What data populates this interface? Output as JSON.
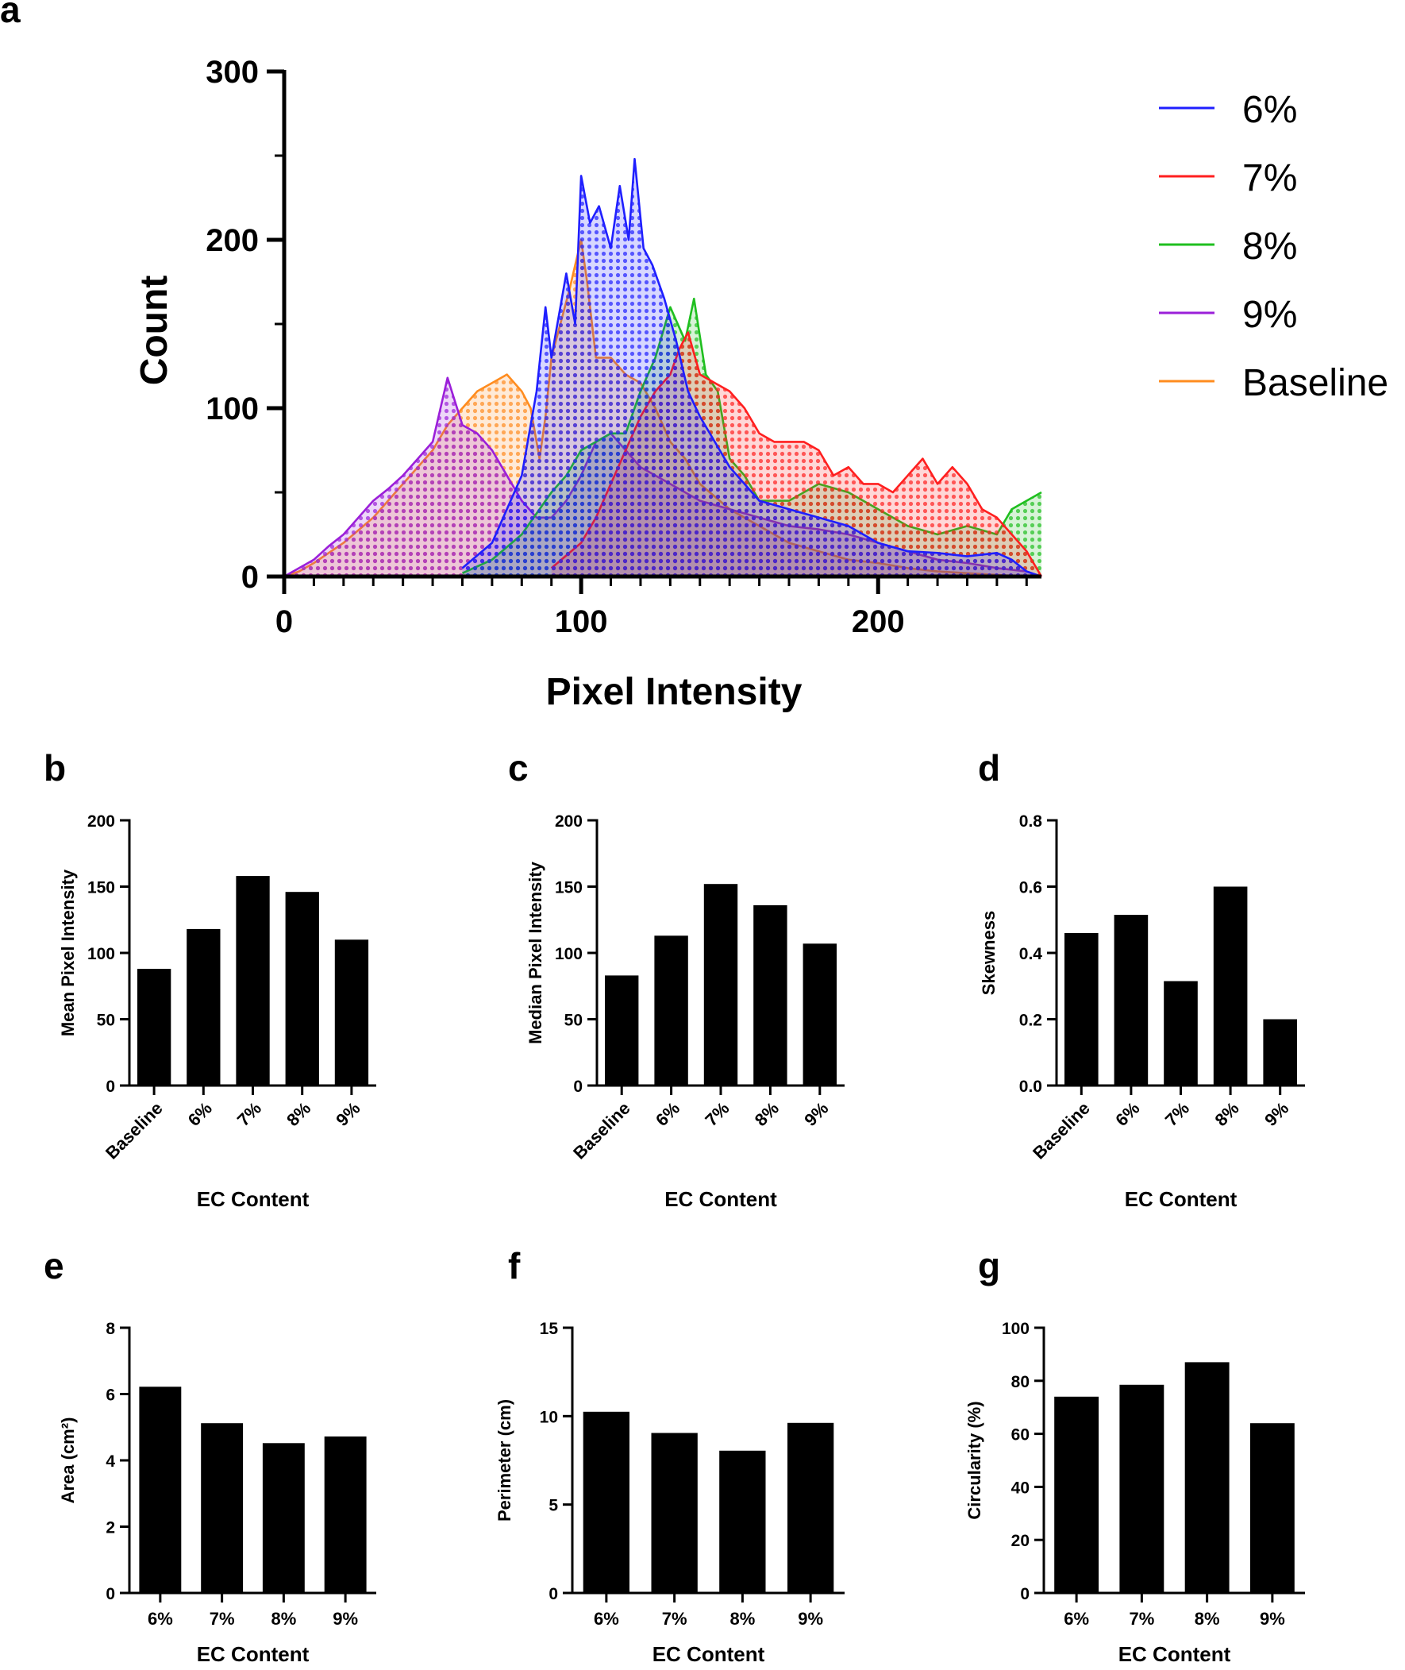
{
  "chart_data": [
    {
      "panel": "a",
      "type": "area",
      "xlabel": "Pixel Intensity",
      "ylabel": "Count",
      "xlim": [
        0,
        255
      ],
      "ylim": [
        0,
        300
      ],
      "xticks": [
        "0",
        "100",
        "200"
      ],
      "yticks": [
        "0",
        "100",
        "200",
        "300"
      ],
      "legend_position": "top-right",
      "series": [
        {
          "name": "6%",
          "color": "#1f1fff",
          "x": [
            60,
            70,
            80,
            85,
            88,
            90,
            95,
            98,
            100,
            103,
            106,
            110,
            113,
            116,
            118,
            121,
            124,
            128,
            132,
            136,
            140,
            145,
            150,
            155,
            160,
            170,
            180,
            190,
            200,
            210,
            220,
            230,
            240,
            245,
            250,
            255
          ],
          "values": [
            5,
            20,
            60,
            110,
            160,
            130,
            180,
            150,
            238,
            210,
            220,
            195,
            232,
            200,
            248,
            195,
            185,
            165,
            140,
            110,
            95,
            80,
            65,
            55,
            45,
            40,
            35,
            30,
            20,
            15,
            14,
            12,
            14,
            10,
            3,
            0
          ]
        },
        {
          "name": "7%",
          "color": "#ff1f1f",
          "x": [
            90,
            100,
            105,
            110,
            115,
            120,
            125,
            130,
            133,
            136,
            140,
            145,
            150,
            155,
            160,
            165,
            170,
            175,
            180,
            185,
            190,
            195,
            200,
            205,
            210,
            215,
            220,
            225,
            230,
            235,
            240,
            245,
            250,
            255
          ],
          "values": [
            5,
            20,
            35,
            55,
            75,
            95,
            110,
            120,
            135,
            145,
            120,
            115,
            110,
            100,
            85,
            80,
            80,
            80,
            75,
            60,
            65,
            55,
            55,
            50,
            60,
            70,
            55,
            65,
            55,
            40,
            35,
            25,
            15,
            0
          ]
        },
        {
          "name": "8%",
          "color": "#1fbf1f",
          "x": [
            60,
            70,
            80,
            90,
            95,
            100,
            105,
            110,
            115,
            120,
            125,
            130,
            135,
            138,
            142,
            146,
            150,
            155,
            160,
            170,
            180,
            190,
            200,
            210,
            220,
            230,
            240,
            245,
            250,
            255
          ],
          "values": [
            2,
            10,
            25,
            50,
            60,
            75,
            80,
            85,
            85,
            110,
            130,
            160,
            140,
            165,
            120,
            110,
            70,
            60,
            45,
            45,
            55,
            50,
            40,
            30,
            25,
            30,
            25,
            40,
            45,
            50
          ]
        },
        {
          "name": "9%",
          "color": "#9b1fd9",
          "x": [
            0,
            5,
            10,
            15,
            20,
            25,
            30,
            35,
            40,
            45,
            50,
            55,
            60,
            65,
            70,
            75,
            80,
            85,
            90,
            95,
            100,
            105,
            110,
            115,
            120,
            130,
            140,
            150,
            160,
            170,
            180,
            190,
            200,
            210,
            220,
            230,
            240,
            250,
            255
          ],
          "values": [
            0,
            5,
            10,
            18,
            25,
            35,
            45,
            52,
            60,
            70,
            80,
            118,
            90,
            85,
            75,
            60,
            45,
            35,
            35,
            45,
            60,
            80,
            85,
            75,
            65,
            55,
            45,
            40,
            35,
            30,
            28,
            25,
            20,
            15,
            10,
            8,
            5,
            3,
            0
          ]
        },
        {
          "name": "Baseline",
          "color": "#ff8c1f",
          "x": [
            0,
            5,
            10,
            20,
            30,
            40,
            50,
            55,
            60,
            65,
            70,
            75,
            80,
            83,
            86,
            88,
            90,
            93,
            96,
            98,
            100,
            102,
            105,
            110,
            115,
            120,
            125,
            130,
            135,
            140,
            150,
            160,
            170,
            180,
            190,
            200,
            210,
            220,
            230,
            240,
            250,
            255
          ],
          "values": [
            0,
            3,
            8,
            20,
            35,
            55,
            75,
            90,
            100,
            110,
            115,
            120,
            110,
            100,
            70,
            95,
            130,
            150,
            170,
            185,
            200,
            175,
            130,
            130,
            120,
            115,
            100,
            80,
            70,
            55,
            40,
            30,
            20,
            15,
            10,
            8,
            5,
            3,
            2,
            1,
            0,
            0
          ]
        }
      ]
    },
    {
      "panel": "b",
      "type": "bar",
      "categories": [
        "Baseline",
        "6%",
        "7%",
        "8%",
        "9%"
      ],
      "values": [
        88,
        118,
        158,
        146,
        110
      ],
      "xlabel": "EC Content",
      "ylabel": "Mean Pixel Intensity",
      "ylim": [
        0,
        200
      ],
      "yticks": [
        "0",
        "50",
        "100",
        "150",
        "200"
      ]
    },
    {
      "panel": "c",
      "type": "bar",
      "categories": [
        "Baseline",
        "6%",
        "7%",
        "8%",
        "9%"
      ],
      "values": [
        83,
        113,
        152,
        136,
        107
      ],
      "xlabel": "EC Content",
      "ylabel": "Median Pixel Intensity",
      "ylim": [
        0,
        200
      ],
      "yticks": [
        "0",
        "50",
        "100",
        "150",
        "200"
      ]
    },
    {
      "panel": "d",
      "type": "bar",
      "categories": [
        "Baseline",
        "6%",
        "7%",
        "8%",
        "9%"
      ],
      "values": [
        0.46,
        0.515,
        0.315,
        0.6,
        0.2
      ],
      "xlabel": "EC Content",
      "ylabel": "Skewness",
      "ylim": [
        0,
        0.8
      ],
      "yticks": [
        "0.0",
        "0.2",
        "0.4",
        "0.6",
        "0.8"
      ]
    },
    {
      "panel": "e",
      "type": "bar",
      "categories": [
        "6%",
        "7%",
        "8%",
        "9%"
      ],
      "values": [
        6.22,
        5.12,
        4.52,
        4.72
      ],
      "xlabel": "EC Content",
      "ylabel": "Area (cm²)",
      "ylim": [
        0,
        8
      ],
      "yticks": [
        "0",
        "2",
        "4",
        "6",
        "8"
      ]
    },
    {
      "panel": "f",
      "type": "bar",
      "categories": [
        "6%",
        "7%",
        "8%",
        "9%"
      ],
      "values": [
        10.25,
        9.05,
        8.05,
        9.62
      ],
      "xlabel": "EC Content",
      "ylabel": "Perimeter (cm)",
      "ylim": [
        0,
        15
      ],
      "yticks": [
        "0",
        "5",
        "10",
        "15"
      ]
    },
    {
      "panel": "g",
      "type": "bar",
      "categories": [
        "6%",
        "7%",
        "8%",
        "9%"
      ],
      "values": [
        74,
        78.5,
        87,
        64
      ],
      "xlabel": "EC Content",
      "ylabel": "Circularity (%)",
      "ylim": [
        0,
        100
      ],
      "yticks": [
        "0",
        "20",
        "40",
        "60",
        "80",
        "100"
      ]
    }
  ]
}
